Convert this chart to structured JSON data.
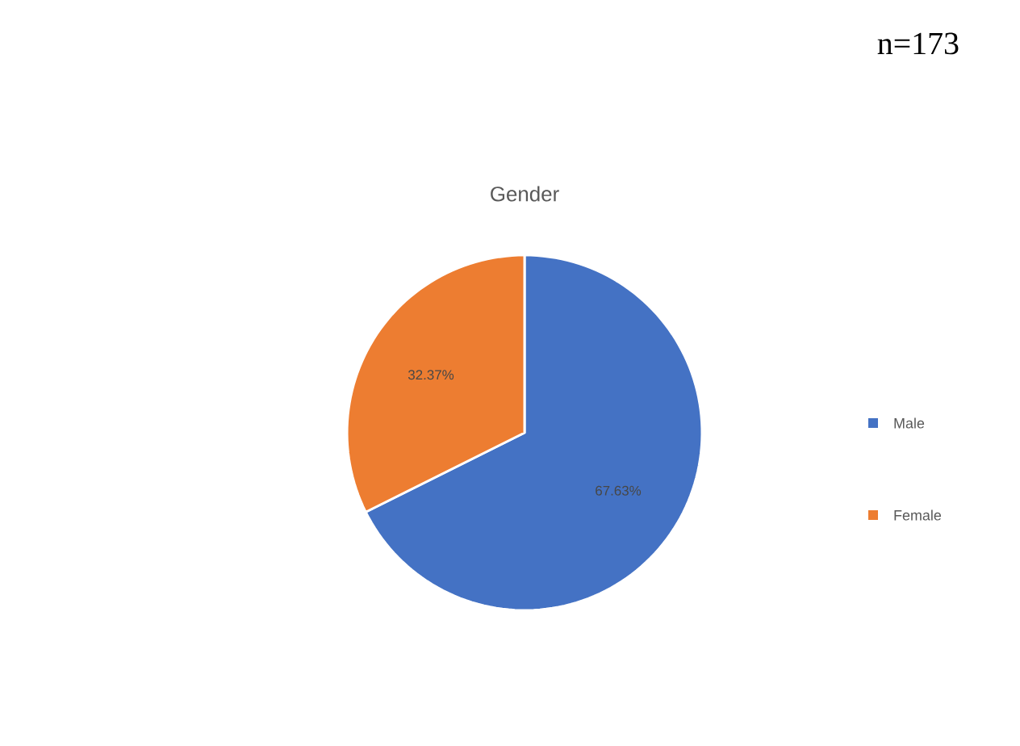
{
  "chart_data": {
    "type": "pie",
    "title": "Gender",
    "categories": [
      "Male",
      "Female"
    ],
    "values": [
      67.63,
      32.37
    ],
    "colors": [
      "#4472c4",
      "#ed7d31"
    ],
    "value_labels": [
      "67.63%",
      "32.37%"
    ],
    "legend": "right",
    "annotations": [
      "n=173"
    ]
  }
}
